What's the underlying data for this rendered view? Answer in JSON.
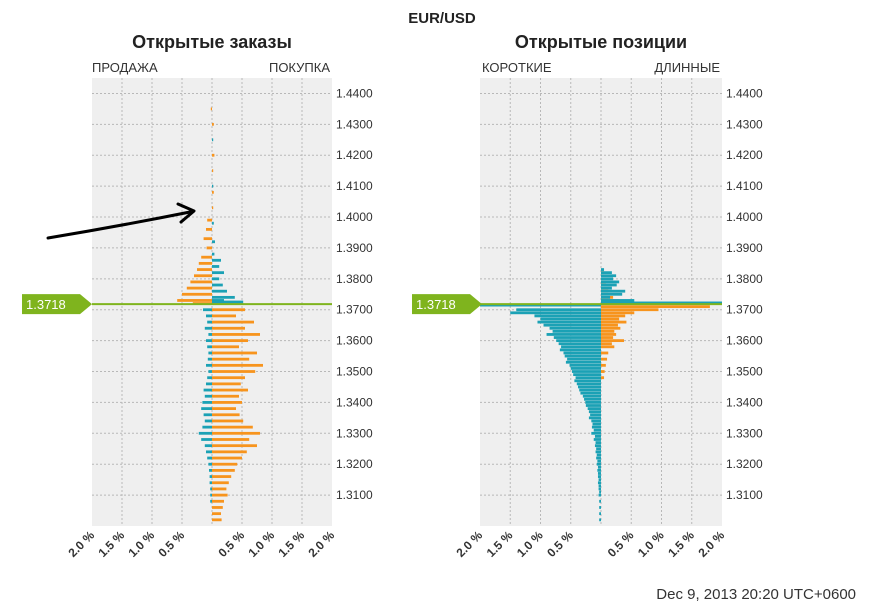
{
  "header": {
    "title": "EUR/USD"
  },
  "timestamp": "Dec 9, 2013 20:20 UTC+0600",
  "colors": {
    "orange": "#f7941d",
    "teal": "#1ba1b5",
    "price_line": "#7fb41e",
    "grid_bg": "#efefef"
  },
  "chart_data": [
    {
      "type": "bar",
      "title": "Открытые заказы",
      "left_label": "ПРОДАЖА",
      "right_label": "ПОКУПКА",
      "ylim": [
        1.3,
        1.445
      ],
      "y_ticks": [
        "1.4400",
        "1.4300",
        "1.4200",
        "1.4100",
        "1.4000",
        "1.3900",
        "1.3800",
        "1.3700",
        "1.3600",
        "1.3500",
        "1.3400",
        "1.3300",
        "1.3200",
        "1.3100"
      ],
      "x_ticks": [
        "2.0 %",
        "1.5 %",
        "1.0 %",
        "0.5 %",
        "0.5 %",
        "1.0 %",
        "1.5 %",
        "2.0 %"
      ],
      "xlim": [
        -2.0,
        2.0
      ],
      "current_price": "1.3718",
      "series": [
        {
          "name": "buy",
          "color": "orange",
          "data": [
            [
              1.435,
              -0.02
            ],
            [
              1.43,
              0.03
            ],
            [
              1.42,
              0.04
            ],
            [
              1.415,
              0.02
            ],
            [
              1.408,
              0.03
            ],
            [
              1.403,
              0.02
            ],
            [
              1.399,
              -0.08
            ],
            [
              1.396,
              -0.1
            ],
            [
              1.393,
              -0.14
            ],
            [
              1.39,
              -0.09
            ],
            [
              1.387,
              -0.18
            ],
            [
              1.385,
              -0.22
            ],
            [
              1.383,
              -0.25
            ],
            [
              1.381,
              -0.3
            ],
            [
              1.379,
              -0.36
            ],
            [
              1.377,
              -0.42
            ],
            [
              1.375,
              -0.5
            ],
            [
              1.373,
              -0.58
            ],
            [
              1.372,
              -0.32
            ],
            [
              1.37,
              0.55
            ],
            [
              1.368,
              0.4
            ],
            [
              1.366,
              0.7
            ],
            [
              1.364,
              0.55
            ],
            [
              1.362,
              0.8
            ],
            [
              1.36,
              0.6
            ],
            [
              1.358,
              0.45
            ],
            [
              1.356,
              0.75
            ],
            [
              1.354,
              0.62
            ],
            [
              1.352,
              0.85
            ],
            [
              1.35,
              0.72
            ],
            [
              1.348,
              0.55
            ],
            [
              1.346,
              0.48
            ],
            [
              1.344,
              0.6
            ],
            [
              1.342,
              0.45
            ],
            [
              1.34,
              0.5
            ],
            [
              1.338,
              0.4
            ],
            [
              1.336,
              0.46
            ],
            [
              1.334,
              0.52
            ],
            [
              1.332,
              0.68
            ],
            [
              1.33,
              0.8
            ],
            [
              1.328,
              0.62
            ],
            [
              1.326,
              0.75
            ],
            [
              1.324,
              0.58
            ],
            [
              1.322,
              0.5
            ],
            [
              1.32,
              0.42
            ],
            [
              1.318,
              0.38
            ],
            [
              1.316,
              0.32
            ],
            [
              1.314,
              0.28
            ],
            [
              1.312,
              0.24
            ],
            [
              1.31,
              0.26
            ],
            [
              1.308,
              0.2
            ],
            [
              1.306,
              0.18
            ],
            [
              1.304,
              0.15
            ],
            [
              1.302,
              0.16
            ]
          ]
        },
        {
          "name": "sell",
          "color": "teal",
          "data": [
            [
              1.425,
              0.02
            ],
            [
              1.41,
              0.02
            ],
            [
              1.398,
              0.03
            ],
            [
              1.392,
              0.05
            ],
            [
              1.388,
              0.04
            ],
            [
              1.386,
              0.15
            ],
            [
              1.384,
              0.12
            ],
            [
              1.382,
              0.2
            ],
            [
              1.38,
              0.12
            ],
            [
              1.378,
              0.18
            ],
            [
              1.376,
              0.25
            ],
            [
              1.374,
              0.38
            ],
            [
              1.373,
              0.2
            ],
            [
              1.3725,
              0.52
            ],
            [
              1.37,
              -0.15
            ],
            [
              1.368,
              -0.1
            ],
            [
              1.366,
              -0.08
            ],
            [
              1.364,
              -0.12
            ],
            [
              1.362,
              -0.06
            ],
            [
              1.36,
              -0.1
            ],
            [
              1.358,
              -0.08
            ],
            [
              1.356,
              -0.06
            ],
            [
              1.354,
              -0.07
            ],
            [
              1.352,
              -0.1
            ],
            [
              1.35,
              -0.06
            ],
            [
              1.348,
              -0.08
            ],
            [
              1.346,
              -0.1
            ],
            [
              1.344,
              -0.14
            ],
            [
              1.342,
              -0.12
            ],
            [
              1.34,
              -0.16
            ],
            [
              1.338,
              -0.18
            ],
            [
              1.336,
              -0.14
            ],
            [
              1.334,
              -0.12
            ],
            [
              1.332,
              -0.16
            ],
            [
              1.33,
              -0.22
            ],
            [
              1.328,
              -0.18
            ],
            [
              1.326,
              -0.12
            ],
            [
              1.324,
              -0.1
            ],
            [
              1.322,
              -0.08
            ],
            [
              1.32,
              -0.06
            ],
            [
              1.318,
              -0.05
            ],
            [
              1.316,
              -0.04
            ],
            [
              1.314,
              -0.04
            ],
            [
              1.312,
              -0.03
            ],
            [
              1.31,
              -0.03
            ],
            [
              1.308,
              -0.03
            ]
          ]
        }
      ]
    },
    {
      "type": "bar",
      "title": "Открытые позиции",
      "left_label": "КОРОТКИЕ",
      "right_label": "ДЛИННЫЕ",
      "ylim": [
        1.3,
        1.445
      ],
      "y_ticks": [
        "1.4400",
        "1.4300",
        "1.4200",
        "1.4100",
        "1.4000",
        "1.3900",
        "1.3800",
        "1.3700",
        "1.3600",
        "1.3500",
        "1.3400",
        "1.3300",
        "1.3200",
        "1.3100"
      ],
      "x_ticks": [
        "2.0 %",
        "1.5 %",
        "1.0 %",
        "0.5 %",
        "0.5 %",
        "1.0 %",
        "1.5 %",
        "2.0 %"
      ],
      "xlim": [
        -2.0,
        2.0
      ],
      "current_price": "1.3718",
      "series": [
        {
          "name": "long",
          "color": "orange",
          "data": [
            [
              1.382,
              0.05
            ],
            [
              1.379,
              0.08
            ],
            [
              1.376,
              0.12
            ],
            [
              1.374,
              0.2
            ],
            [
              1.373,
              0.3
            ],
            [
              1.3715,
              -1.8
            ],
            [
              1.371,
              1.8
            ],
            [
              1.37,
              0.95
            ],
            [
              1.369,
              0.55
            ],
            [
              1.368,
              0.4
            ],
            [
              1.367,
              0.3
            ],
            [
              1.366,
              0.42
            ],
            [
              1.365,
              0.28
            ],
            [
              1.364,
              0.32
            ],
            [
              1.363,
              0.22
            ],
            [
              1.362,
              0.25
            ],
            [
              1.361,
              0.2
            ],
            [
              1.36,
              0.38
            ],
            [
              1.359,
              0.18
            ],
            [
              1.358,
              0.22
            ],
            [
              1.356,
              0.12
            ],
            [
              1.354,
              0.1
            ],
            [
              1.352,
              0.08
            ],
            [
              1.35,
              0.06
            ],
            [
              1.348,
              0.05
            ]
          ]
        },
        {
          "name": "short",
          "color": "teal",
          "data": [
            [
              1.383,
              0.05
            ],
            [
              1.382,
              0.18
            ],
            [
              1.381,
              0.25
            ],
            [
              1.38,
              0.2
            ],
            [
              1.379,
              0.3
            ],
            [
              1.378,
              0.26
            ],
            [
              1.377,
              0.18
            ],
            [
              1.376,
              0.4
            ],
            [
              1.375,
              0.35
            ],
            [
              1.374,
              0.15
            ],
            [
              1.373,
              0.55
            ],
            [
              1.3722,
              2.0
            ],
            [
              1.3715,
              -2.0
            ],
            [
              1.37,
              -1.4
            ],
            [
              1.369,
              -1.5
            ],
            [
              1.368,
              -1.1
            ],
            [
              1.367,
              -1.0
            ],
            [
              1.366,
              -1.05
            ],
            [
              1.365,
              -0.95
            ],
            [
              1.364,
              -0.85
            ],
            [
              1.363,
              -0.8
            ],
            [
              1.362,
              -0.9
            ],
            [
              1.361,
              -0.78
            ],
            [
              1.36,
              -0.74
            ],
            [
              1.359,
              -0.7
            ],
            [
              1.358,
              -0.66
            ],
            [
              1.357,
              -0.68
            ],
            [
              1.356,
              -0.62
            ],
            [
              1.355,
              -0.6
            ],
            [
              1.354,
              -0.56
            ],
            [
              1.353,
              -0.58
            ],
            [
              1.352,
              -0.52
            ],
            [
              1.351,
              -0.5
            ],
            [
              1.35,
              -0.48
            ],
            [
              1.349,
              -0.46
            ],
            [
              1.348,
              -0.42
            ],
            [
              1.347,
              -0.44
            ],
            [
              1.346,
              -0.4
            ],
            [
              1.345,
              -0.38
            ],
            [
              1.344,
              -0.36
            ],
            [
              1.343,
              -0.34
            ],
            [
              1.342,
              -0.3
            ],
            [
              1.341,
              -0.28
            ],
            [
              1.34,
              -0.26
            ],
            [
              1.339,
              -0.25
            ],
            [
              1.338,
              -0.22
            ],
            [
              1.337,
              -0.2
            ],
            [
              1.336,
              -0.18
            ],
            [
              1.335,
              -0.2
            ],
            [
              1.334,
              -0.16
            ],
            [
              1.333,
              -0.14
            ],
            [
              1.332,
              -0.15
            ],
            [
              1.331,
              -0.12
            ],
            [
              1.33,
              -0.16
            ],
            [
              1.329,
              -0.1
            ],
            [
              1.328,
              -0.12
            ],
            [
              1.327,
              -0.09
            ],
            [
              1.326,
              -0.1
            ],
            [
              1.325,
              -0.08
            ],
            [
              1.324,
              -0.09
            ],
            [
              1.323,
              -0.07
            ],
            [
              1.322,
              -0.08
            ],
            [
              1.321,
              -0.06
            ],
            [
              1.32,
              -0.07
            ],
            [
              1.319,
              -0.05
            ],
            [
              1.318,
              -0.06
            ],
            [
              1.317,
              -0.05
            ],
            [
              1.316,
              -0.05
            ],
            [
              1.315,
              -0.04
            ],
            [
              1.314,
              -0.05
            ],
            [
              1.313,
              -0.04
            ],
            [
              1.312,
              -0.04
            ],
            [
              1.311,
              -0.03
            ],
            [
              1.31,
              -0.04
            ],
            [
              1.308,
              -0.03
            ],
            [
              1.306,
              -0.03
            ],
            [
              1.304,
              -0.03
            ],
            [
              1.302,
              -0.03
            ]
          ]
        }
      ]
    }
  ]
}
